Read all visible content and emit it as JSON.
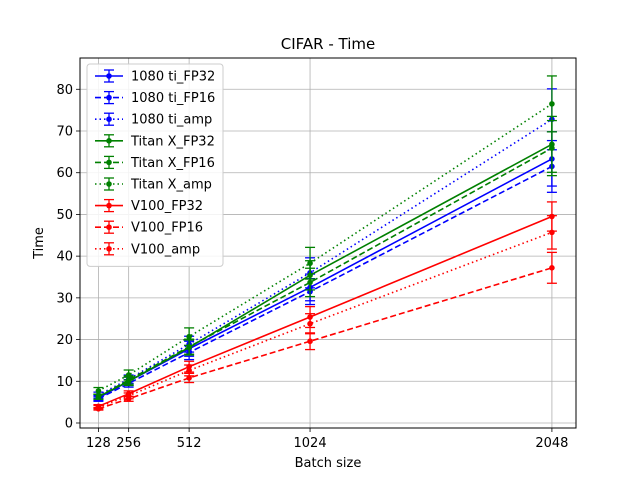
{
  "chart_data": {
    "type": "line",
    "title": "CIFAR - Time",
    "xlabel": "Batch size",
    "ylabel": "Time",
    "x": [
      128,
      256,
      512,
      1024,
      2048
    ],
    "x_ticks": [
      128,
      256,
      512,
      1024,
      2048
    ],
    "y_ticks": [
      0,
      10,
      20,
      30,
      40,
      50,
      60,
      70,
      80
    ],
    "xlim": [
      50,
      2150
    ],
    "ylim": [
      -1.2,
      87.5
    ],
    "grid": true,
    "legend_position": "upper-left",
    "series": [
      {
        "name": "1080 ti_FP32",
        "color": "#0000ff",
        "linestyle": "solid",
        "values": [
          6.0,
          10.0,
          17.8,
          32.5,
          63.3
        ],
        "errors": [
          0.6,
          1.0,
          1.8,
          3.2,
          6.5
        ]
      },
      {
        "name": "1080 ti_FP16",
        "color": "#0000ff",
        "linestyle": "dashed",
        "values": [
          5.8,
          9.5,
          16.9,
          31.5,
          61.5
        ],
        "errors": [
          0.6,
          0.9,
          1.7,
          3.1,
          6.2
        ]
      },
      {
        "name": "1080 ti_amp",
        "color": "#0000ff",
        "linestyle": "dotted",
        "values": [
          6.7,
          10.5,
          18.9,
          36.0,
          72.8
        ],
        "errors": [
          0.7,
          1.0,
          1.9,
          3.6,
          7.3
        ]
      },
      {
        "name": "Titan X_FP32",
        "color": "#008000",
        "linestyle": "solid",
        "values": [
          6.3,
          10.0,
          18.1,
          35.4,
          66.8
        ],
        "errors": [
          0.6,
          1.0,
          1.8,
          3.5,
          6.7
        ]
      },
      {
        "name": "Titan X_FP16",
        "color": "#008000",
        "linestyle": "dashed",
        "values": [
          6.3,
          10.3,
          18.3,
          33.7,
          65.9
        ],
        "errors": [
          0.6,
          1.0,
          1.8,
          3.4,
          6.6
        ]
      },
      {
        "name": "Titan X_amp",
        "color": "#008000",
        "linestyle": "dotted",
        "values": [
          7.7,
          11.5,
          20.7,
          38.3,
          76.5
        ],
        "errors": [
          0.8,
          1.2,
          2.1,
          3.8,
          6.7
        ]
      },
      {
        "name": "V100_FP32",
        "color": "#ff0000",
        "linestyle": "solid",
        "values": [
          4.0,
          7.0,
          13.5,
          25.4,
          49.5
        ],
        "errors": [
          0.4,
          0.7,
          1.3,
          2.5,
          3.5
        ]
      },
      {
        "name": "V100_FP16",
        "color": "#ff0000",
        "linestyle": "dashed",
        "values": [
          3.4,
          5.8,
          10.8,
          19.6,
          37.2
        ],
        "errors": [
          0.3,
          0.6,
          1.1,
          2.0,
          3.7
        ]
      },
      {
        "name": "V100_amp",
        "color": "#ff0000",
        "linestyle": "dotted",
        "values": [
          3.8,
          6.5,
          12.6,
          23.8,
          45.7
        ],
        "errors": [
          0.4,
          0.7,
          1.3,
          2.4,
          4.0
        ]
      }
    ]
  }
}
